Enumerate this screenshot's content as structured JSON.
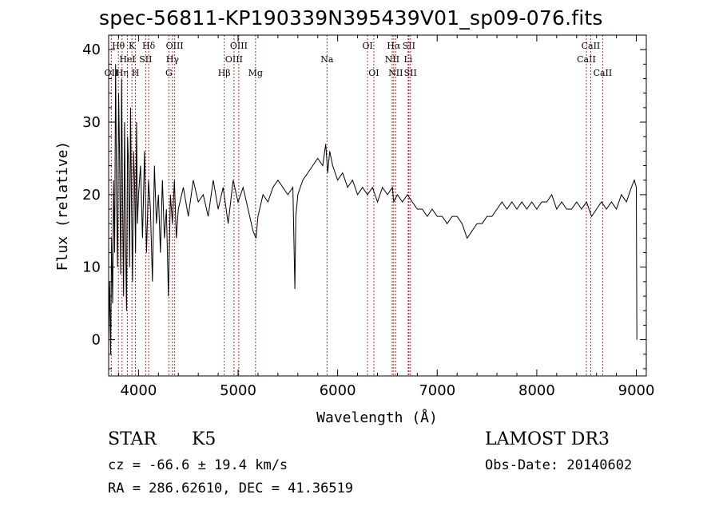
{
  "chart_data": {
    "type": "line",
    "title": "spec-56811-KP190339N395439V01_sp09-076.fits",
    "xlabel": "Wavelength (Å)",
    "ylabel": "Flux (relative)",
    "xlim": [
      3700,
      9100
    ],
    "ylim": [
      -5,
      42
    ],
    "x_ticks": [
      4000,
      5000,
      6000,
      7000,
      8000,
      9000
    ],
    "y_ticks": [
      0,
      10,
      20,
      30,
      40
    ],
    "series": [
      {
        "name": "spectrum",
        "x": [
          3700,
          3710,
          3720,
          3730,
          3740,
          3750,
          3760,
          3770,
          3780,
          3790,
          3800,
          3810,
          3820,
          3830,
          3840,
          3850,
          3860,
          3870,
          3880,
          3890,
          3900,
          3910,
          3920,
          3930,
          3940,
          3950,
          3960,
          3970,
          3980,
          3990,
          4000,
          4020,
          4040,
          4060,
          4080,
          4100,
          4120,
          4140,
          4160,
          4180,
          4200,
          4220,
          4240,
          4260,
          4280,
          4300,
          4320,
          4340,
          4360,
          4380,
          4400,
          4450,
          4500,
          4550,
          4600,
          4650,
          4700,
          4750,
          4800,
          4850,
          4900,
          4950,
          5000,
          5050,
          5100,
          5150,
          5180,
          5200,
          5250,
          5300,
          5350,
          5400,
          5450,
          5500,
          5550,
          5570,
          5580,
          5600,
          5650,
          5700,
          5750,
          5800,
          5850,
          5880,
          5900,
          5920,
          5950,
          6000,
          6050,
          6100,
          6150,
          6200,
          6250,
          6300,
          6350,
          6400,
          6450,
          6500,
          6550,
          6563,
          6600,
          6650,
          6700,
          6750,
          6800,
          6850,
          6900,
          6950,
          7000,
          7050,
          7100,
          7150,
          7200,
          7250,
          7300,
          7350,
          7400,
          7450,
          7500,
          7550,
          7600,
          7650,
          7700,
          7750,
          7800,
          7850,
          7900,
          7950,
          8000,
          8050,
          8100,
          8150,
          8200,
          8250,
          8300,
          8350,
          8400,
          8450,
          8500,
          8550,
          8600,
          8650,
          8700,
          8750,
          8800,
          8850,
          8900,
          8950,
          8980,
          9000,
          9005
        ],
        "y": [
          0,
          8,
          -2,
          14,
          5,
          22,
          12,
          38,
          18,
          10,
          34,
          25,
          9,
          36,
          20,
          6,
          30,
          14,
          4,
          28,
          24,
          10,
          32,
          18,
          8,
          26,
          22,
          12,
          30,
          16,
          20,
          24,
          14,
          26,
          12,
          22,
          18,
          8,
          24,
          16,
          20,
          12,
          22,
          14,
          18,
          6,
          20,
          16,
          22,
          14,
          18,
          21,
          17,
          22,
          19,
          20,
          17,
          22,
          18,
          21,
          16,
          22,
          19,
          21,
          18,
          15,
          14,
          17,
          20,
          19,
          21,
          22,
          21,
          20,
          21,
          7,
          17,
          20,
          22,
          23,
          24,
          25,
          24,
          27,
          23,
          26,
          24,
          22,
          23,
          21,
          22,
          20,
          21,
          20,
          21,
          19,
          21,
          20,
          21,
          19,
          20,
          19,
          20,
          19,
          18,
          18,
          17,
          18,
          17,
          17,
          16,
          17,
          17,
          16,
          14,
          15,
          16,
          16,
          17,
          17,
          18,
          19,
          18,
          19,
          18,
          19,
          18,
          19,
          18,
          19,
          19,
          20,
          18,
          19,
          18,
          18,
          19,
          18,
          19,
          17,
          18,
          19,
          18,
          19,
          18,
          20,
          19,
          21,
          22,
          21,
          0
        ]
      }
    ],
    "lines": [
      {
        "label": "OII",
        "wavelength": 3727,
        "row": 3
      },
      {
        "label": "Hθ",
        "wavelength": 3798,
        "row": 1
      },
      {
        "label": "Hη",
        "wavelength": 3835,
        "row": 3
      },
      {
        "label": "HeI",
        "wavelength": 3889,
        "row": 2
      },
      {
        "label": "K",
        "wavelength": 3934,
        "row": 1
      },
      {
        "label": "H",
        "wavelength": 3969,
        "row": 3
      },
      {
        "label": "SII",
        "wavelength": 4072,
        "row": 2
      },
      {
        "label": "Hδ",
        "wavelength": 4102,
        "row": 1
      },
      {
        "label": "G",
        "wavelength": 4305,
        "row": 3
      },
      {
        "label": "Hγ",
        "wavelength": 4341,
        "row": 2
      },
      {
        "label": "OIII",
        "wavelength": 4363,
        "row": 1
      },
      {
        "label": "Hβ",
        "wavelength": 4861,
        "row": 3
      },
      {
        "label": "OIII",
        "wavelength": 4959,
        "row": 2
      },
      {
        "label": "OIII",
        "wavelength": 5007,
        "row": 1
      },
      {
        "label": "Mg",
        "wavelength": 5175,
        "row": 3
      },
      {
        "label": "Na",
        "wavelength": 5893,
        "row": 2
      },
      {
        "label": "OI",
        "wavelength": 6300,
        "row": 1
      },
      {
        "label": "OI",
        "wavelength": 6363,
        "row": 3
      },
      {
        "label": "NII",
        "wavelength": 6548,
        "row": 2
      },
      {
        "label": "Hα",
        "wavelength": 6563,
        "row": 1
      },
      {
        "label": "NII",
        "wavelength": 6583,
        "row": 3
      },
      {
        "label": "Li",
        "wavelength": 6708,
        "row": 2
      },
      {
        "label": "SII",
        "wavelength": 6716,
        "row": 1
      },
      {
        "label": "SII",
        "wavelength": 6731,
        "row": 3
      },
      {
        "label": "CaII",
        "wavelength": 8498,
        "row": 2
      },
      {
        "label": "CaII",
        "wavelength": 8542,
        "row": 1
      },
      {
        "label": "CaII",
        "wavelength": 8662,
        "row": 3
      }
    ],
    "line_color": "#b03030"
  },
  "info": {
    "obj_class": "STAR",
    "subclass": "K5",
    "survey": "LAMOST DR3",
    "cz": "cz = -66.6 ± 19.4 km/s",
    "obs_date": "Obs-Date: 20140602",
    "radec": "RA = 286.62610, DEC =  41.36519"
  }
}
